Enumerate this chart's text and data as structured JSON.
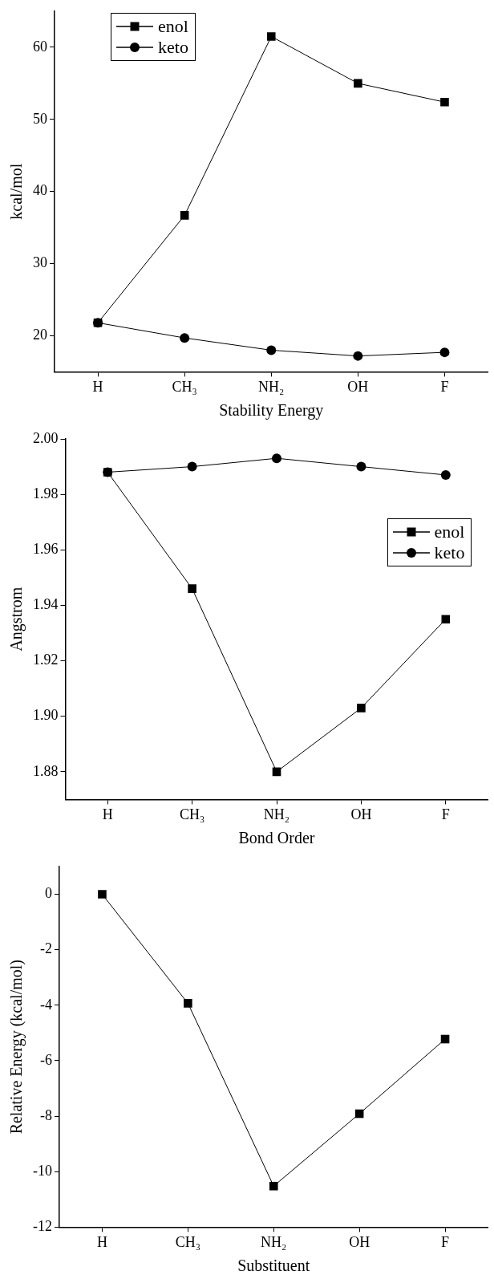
{
  "chart_data": [
    {
      "type": "line",
      "xlabel": "Stability Energy",
      "ylabel": "kcal/mol",
      "categories": [
        "H",
        "CH₃",
        "NH₂",
        "OH",
        "F"
      ],
      "ylim": [
        15,
        65
      ],
      "yticks": [
        20,
        30,
        40,
        50,
        60
      ],
      "grid": false,
      "legend": "top left",
      "series": [
        {
          "name": "enol",
          "color": "#000000",
          "marker": "square",
          "values": [
            21.8,
            36.7,
            61.5,
            55.0,
            52.4
          ]
        },
        {
          "name": "keto",
          "color": "#000000",
          "marker": "circle",
          "values": [
            21.8,
            19.7,
            18.0,
            17.2,
            17.7
          ]
        }
      ]
    },
    {
      "type": "line",
      "xlabel": "Bond Order",
      "ylabel": "Angstrom",
      "categories": [
        "H",
        "CH₃",
        "NH₂",
        "OH",
        "F"
      ],
      "ylim": [
        1.87,
        2.0
      ],
      "yticks": [
        {
          "value": 1.88,
          "label": "1.88"
        },
        {
          "value": 1.9,
          "label": "1.90"
        },
        {
          "value": 1.92,
          "label": "1.92"
        },
        {
          "value": 1.94,
          "label": "1.94"
        },
        {
          "value": 1.96,
          "label": "1.96"
        },
        {
          "value": 1.98,
          "label": "1.98"
        },
        {
          "value": 2.0,
          "label": "2.00"
        }
      ],
      "grid": false,
      "legend": "top right",
      "series": [
        {
          "name": "enol",
          "color": "#000000",
          "marker": "square",
          "values": [
            1.988,
            1.946,
            1.88,
            1.903,
            1.935
          ]
        },
        {
          "name": "keto",
          "color": "#000000",
          "marker": "circle",
          "values": [
            1.988,
            1.99,
            1.993,
            1.99,
            1.987
          ]
        }
      ]
    },
    {
      "type": "line",
      "xlabel": "Substituent",
      "ylabel": "Relative Energy (kcal/mol)",
      "categories": [
        "H",
        "CH₃",
        "NH₂",
        "OH",
        "F"
      ],
      "ylim": [
        -12,
        1
      ],
      "yticks": [
        -12,
        -10,
        -8,
        -6,
        -4,
        -2,
        0
      ],
      "grid": false,
      "series": [
        {
          "color": "#000000",
          "marker": "square",
          "values": [
            0,
            -3.93,
            -10.52,
            -7.91,
            -5.22
          ]
        }
      ]
    }
  ]
}
